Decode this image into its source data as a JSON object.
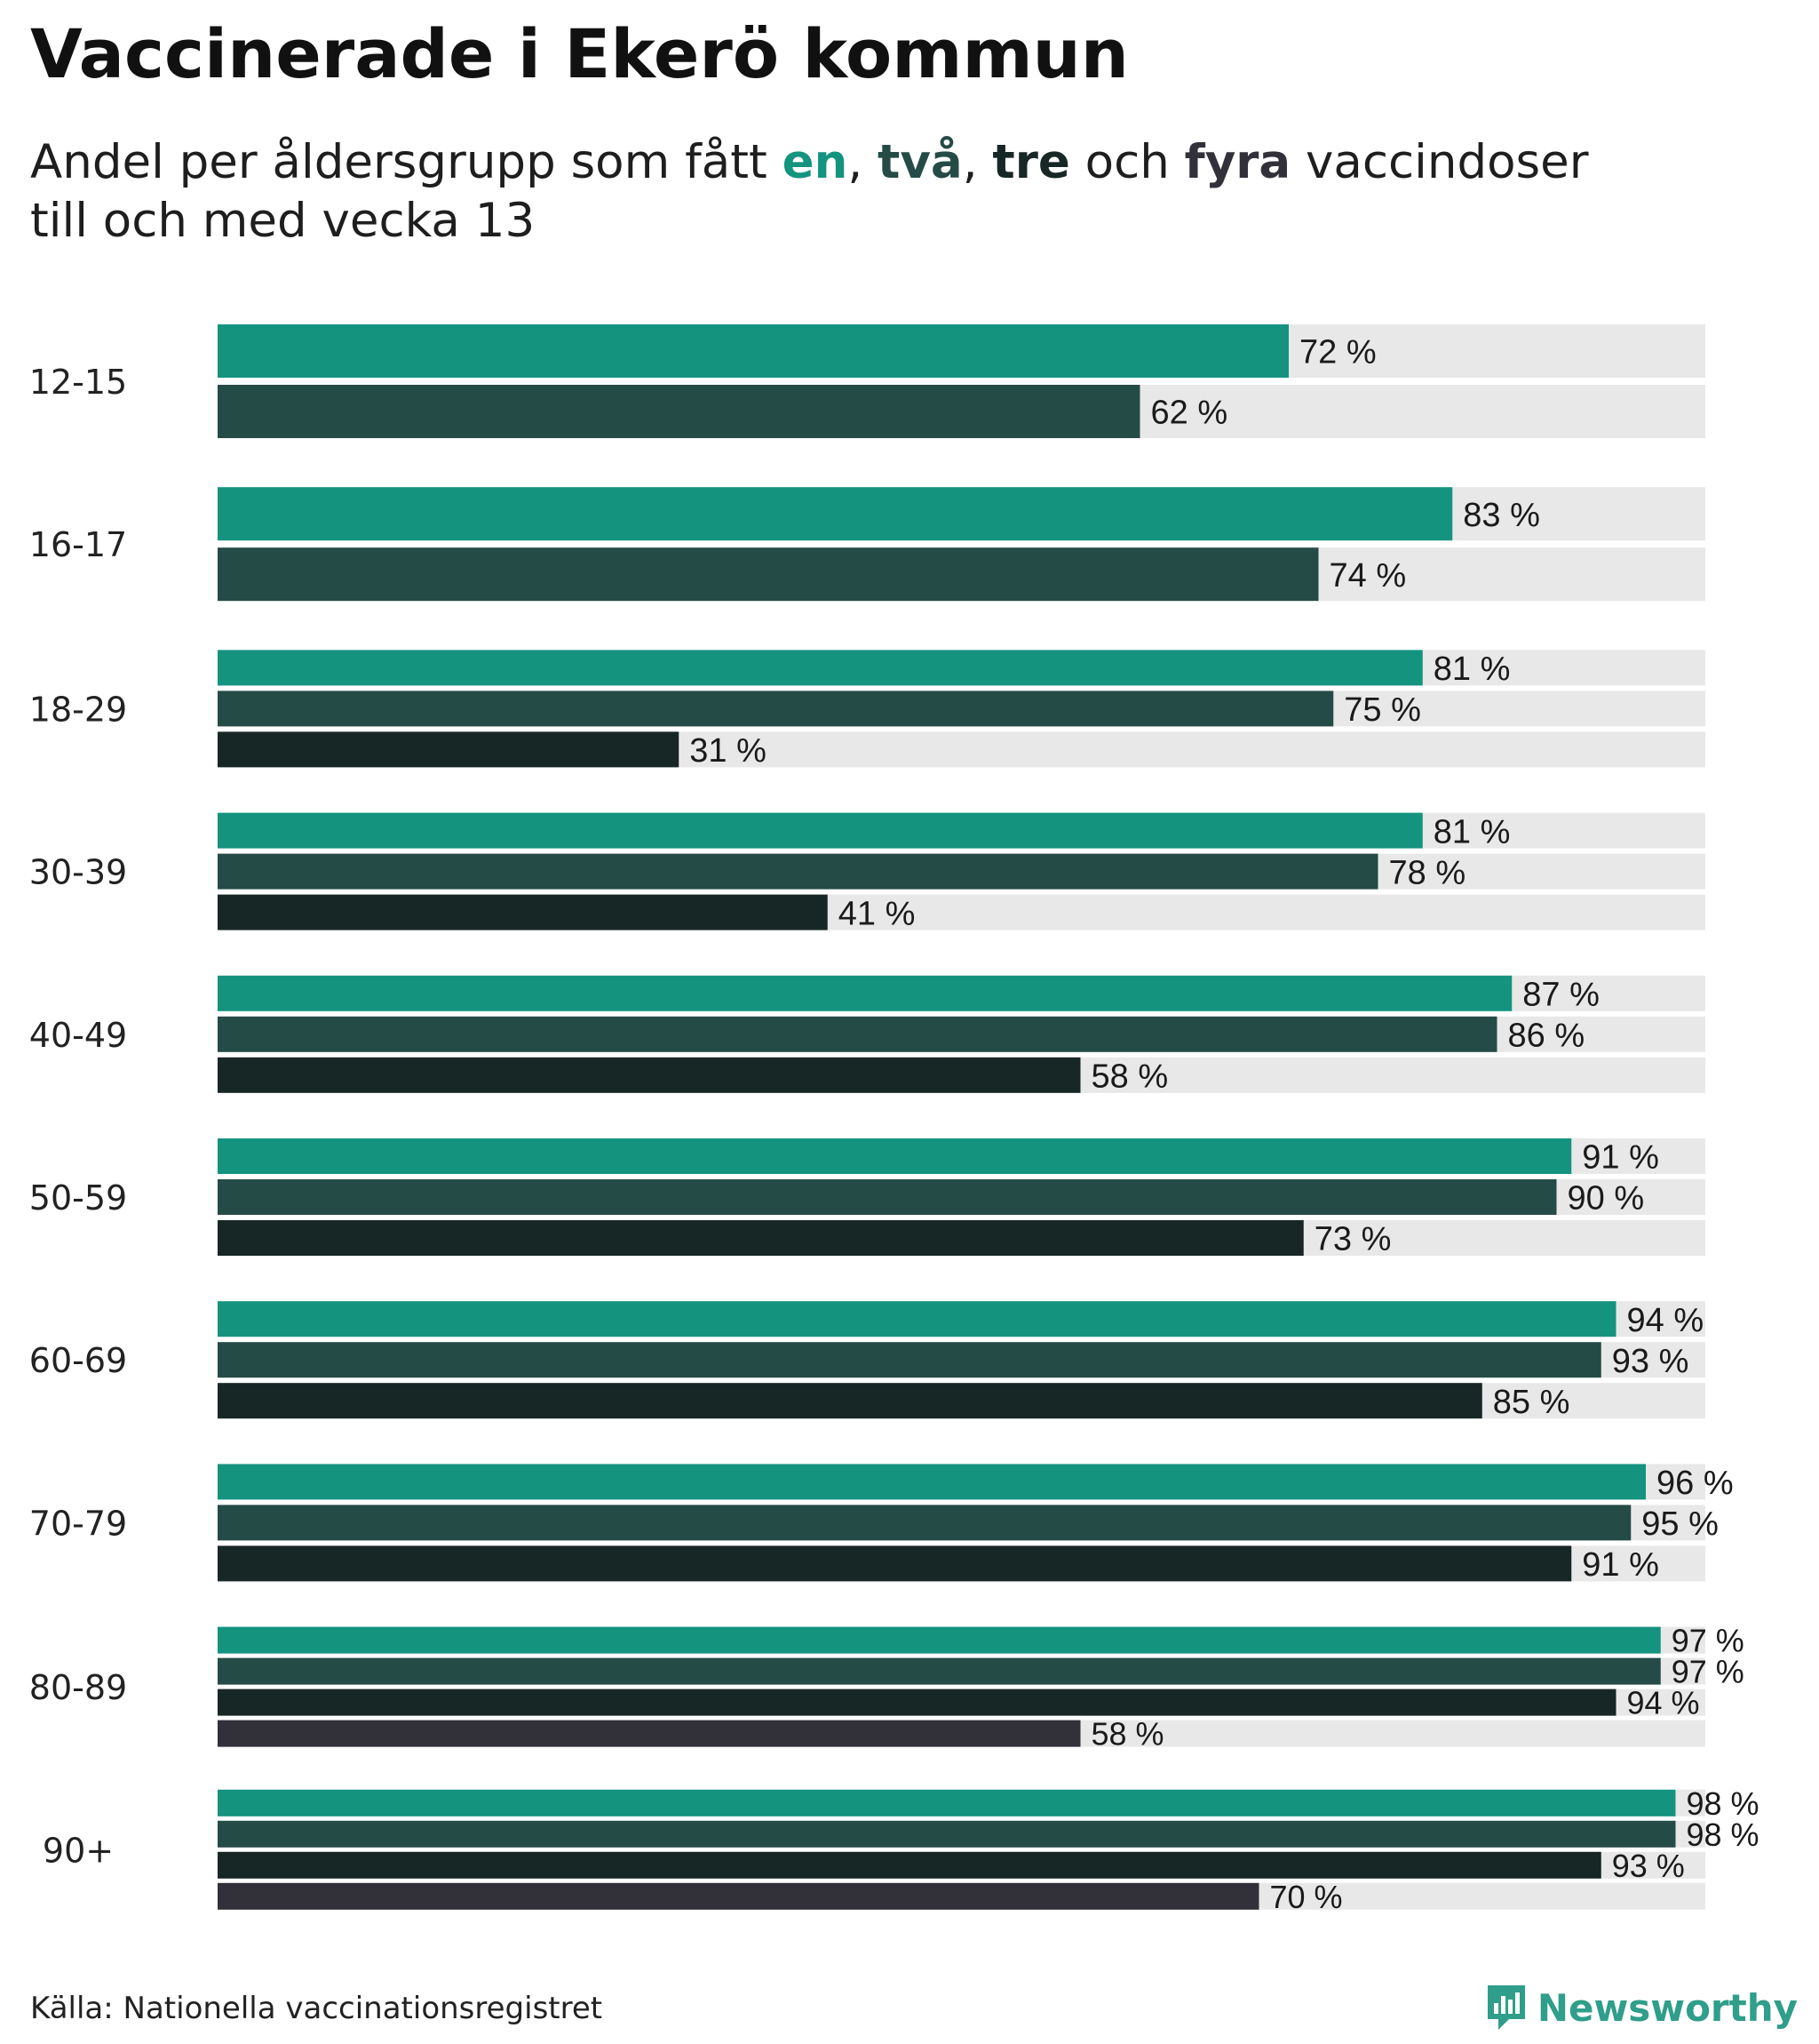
{
  "title": "Vaccinerade i Ekerö kommun",
  "subtitle": {
    "prefix": "Andel per åldersgrupp som fått ",
    "dose1": "en",
    "sep1": ", ",
    "dose2": "två",
    "sep2": ", ",
    "dose3": "tre",
    "mid": " och ",
    "dose4": "fyra",
    "suffix1": " vaccindoser",
    "line2": "till och med vecka 13"
  },
  "colors": {
    "dose1": "#14937f",
    "dose2": "#254b46",
    "dose3": "#172725",
    "dose4": "#323039",
    "track": "#e8e8e8",
    "brand": "#2f9e8a"
  },
  "chart_data": {
    "type": "bar",
    "orientation": "horizontal",
    "title": "Vaccinerade i Ekerö kommun",
    "value_suffix": " %",
    "xlim": [
      0,
      100
    ],
    "series_names": [
      "en",
      "två",
      "tre",
      "fyra"
    ],
    "categories": [
      "12-15",
      "16-17",
      "18-29",
      "30-39",
      "40-49",
      "50-59",
      "60-69",
      "70-79",
      "80-89",
      "90+"
    ],
    "groups": [
      {
        "label": "12-15",
        "values": [
          72,
          62
        ]
      },
      {
        "label": "16-17",
        "values": [
          83,
          74
        ]
      },
      {
        "label": "18-29",
        "values": [
          81,
          75,
          31
        ]
      },
      {
        "label": "30-39",
        "values": [
          81,
          78,
          41
        ]
      },
      {
        "label": "40-49",
        "values": [
          87,
          86,
          58
        ]
      },
      {
        "label": "50-59",
        "values": [
          91,
          90,
          73
        ]
      },
      {
        "label": "60-69",
        "values": [
          94,
          93,
          85
        ]
      },
      {
        "label": "70-79",
        "values": [
          96,
          95,
          91
        ]
      },
      {
        "label": "80-89",
        "values": [
          97,
          97,
          94,
          58
        ]
      },
      {
        "label": "90+",
        "values": [
          98,
          98,
          93,
          70
        ]
      }
    ]
  },
  "source": "Källa: Nationella vaccinationsregistret",
  "brand": "Newsworthy",
  "brand_icon": "newsworthy-logo-icon"
}
